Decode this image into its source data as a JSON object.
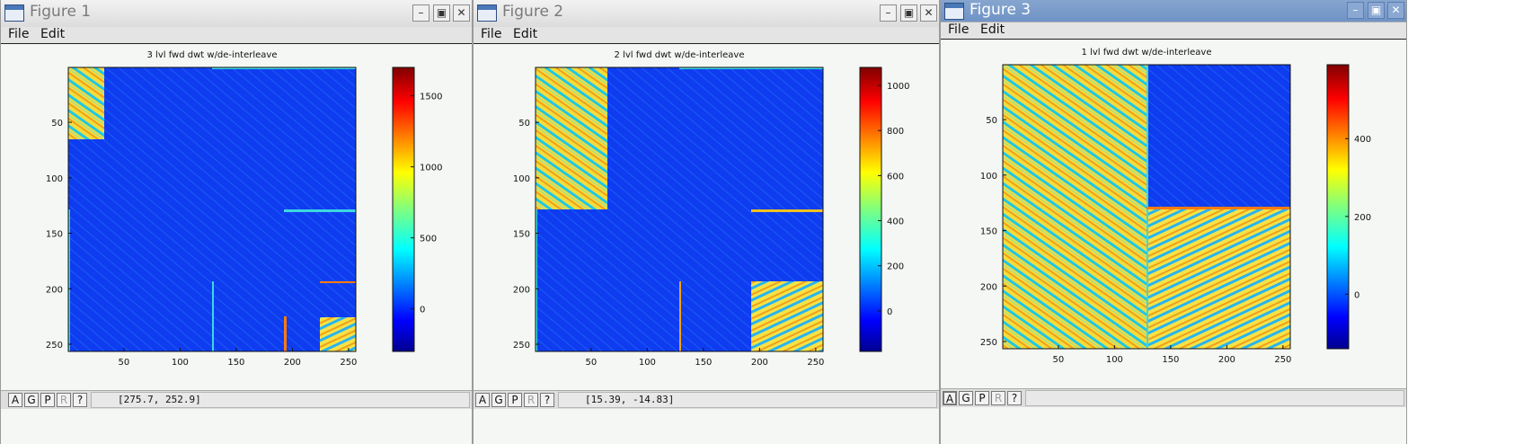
{
  "colors": {
    "accent_titlebar": "#7096c8",
    "plot_background": "#f4f7f4"
  },
  "icons": {
    "window": "window-icon",
    "minimize": "minimize-icon",
    "maximize": "maximize-icon",
    "close": "close-icon"
  },
  "windows": [
    {
      "title": "Figure 1",
      "menu": [
        "File",
        "Edit"
      ],
      "status_buttons": [
        "A",
        "G",
        "P",
        "R",
        "?"
      ],
      "coords": "[275.7,  252.9]",
      "chart_data": {
        "type": "heatmap",
        "title": "3 lvl fwd dwt w/de-interleave",
        "x_ticks": [
          "50",
          "100",
          "150",
          "200",
          "250"
        ],
        "y_ticks": [
          "50",
          "100",
          "150",
          "200",
          "250"
        ],
        "colorbar_ticks": [
          "0",
          "500",
          "1000",
          "1500"
        ],
        "colorbar_range": [
          -300,
          1700
        ]
      }
    },
    {
      "title": "Figure 2",
      "menu": [
        "File",
        "Edit"
      ],
      "status_buttons": [
        "A",
        "G",
        "P",
        "R",
        "?"
      ],
      "coords": "[15.39,  -14.83]",
      "chart_data": {
        "type": "heatmap",
        "title": "2 lvl fwd dwt w/de-interleave",
        "x_ticks": [
          "50",
          "100",
          "150",
          "200",
          "250"
        ],
        "y_ticks": [
          "50",
          "100",
          "150",
          "200",
          "250"
        ],
        "colorbar_ticks": [
          "0",
          "200",
          "400",
          "600",
          "800",
          "1000"
        ],
        "colorbar_range": [
          -180,
          1080
        ]
      }
    },
    {
      "title": "Figure 3",
      "menu": [
        "File",
        "Edit"
      ],
      "status_buttons": [
        "A",
        "G",
        "P",
        "R",
        "?"
      ],
      "coords": "",
      "chart_data": {
        "type": "heatmap",
        "title": "1 lvl fwd dwt w/de-interleave",
        "x_ticks": [
          "50",
          "100",
          "150",
          "200",
          "250"
        ],
        "y_ticks": [
          "50",
          "100",
          "150",
          "200",
          "250"
        ],
        "colorbar_ticks": [
          "0",
          "200",
          "400"
        ],
        "colorbar_range": [
          -140,
          590
        ]
      }
    }
  ]
}
